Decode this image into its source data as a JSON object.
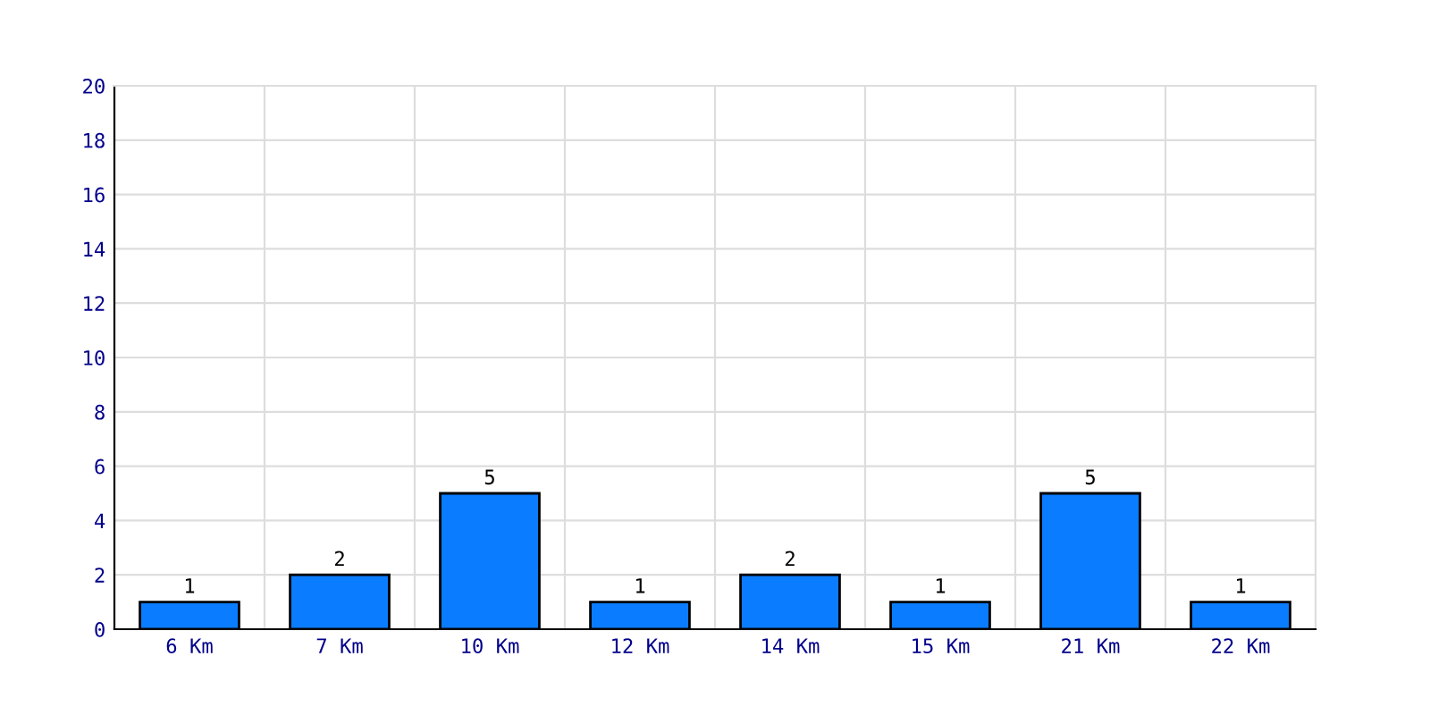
{
  "chart_data": {
    "type": "bar",
    "categories": [
      "6 Km",
      "7 Km",
      "10 Km",
      "12 Km",
      "14 Km",
      "15 Km",
      "21 Km",
      "22 Km"
    ],
    "values": [
      1,
      2,
      5,
      1,
      2,
      1,
      5,
      1
    ],
    "color": "#0a7cff",
    "ylim": [
      0,
      20
    ],
    "yticks": [
      0,
      2,
      4,
      6,
      8,
      10,
      12,
      14,
      16,
      18,
      20
    ],
    "grid": true,
    "data_labels": true
  }
}
